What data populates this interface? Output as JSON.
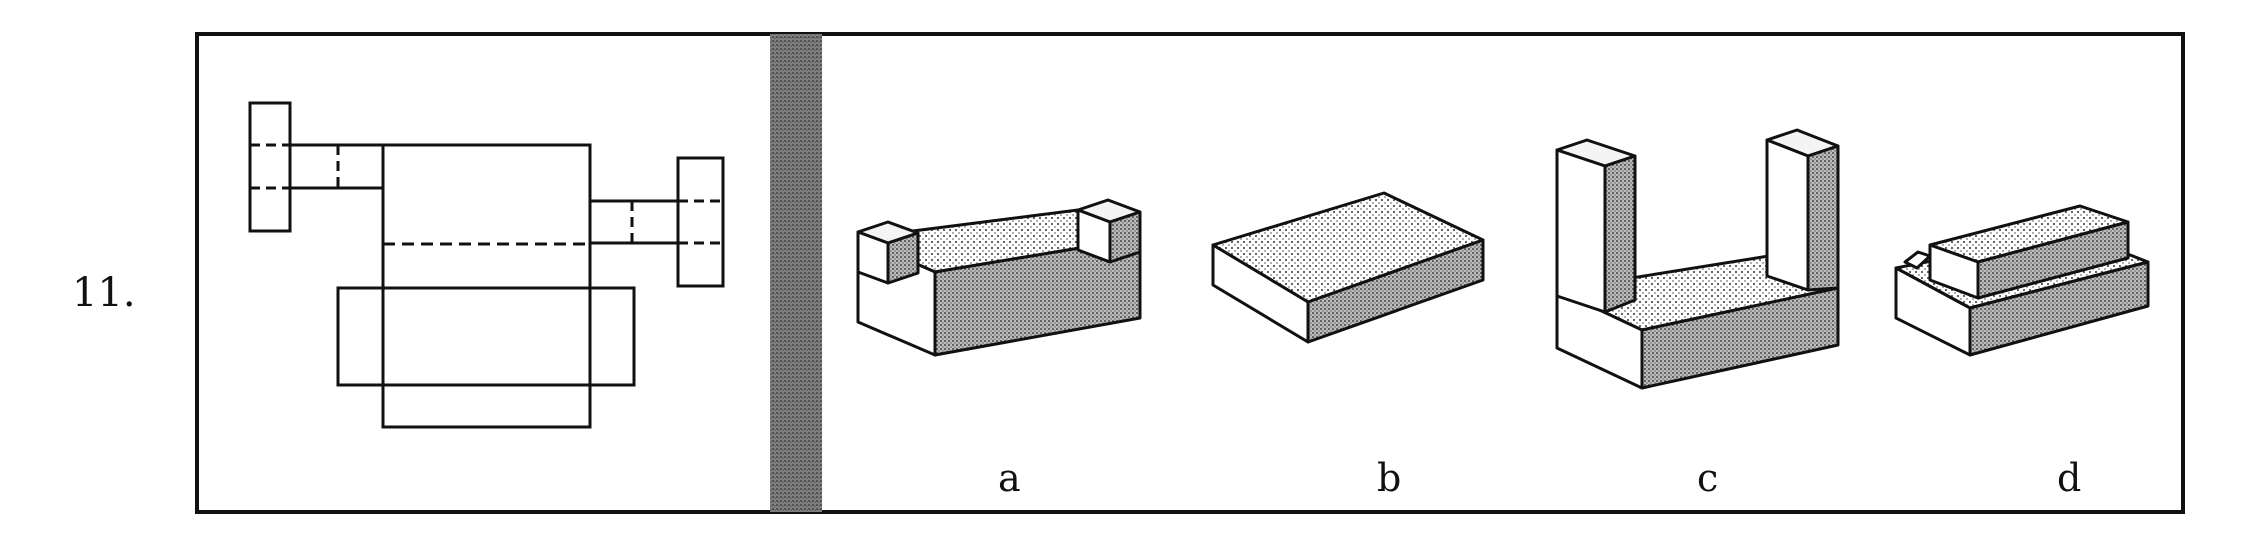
{
  "question": {
    "number": "11."
  },
  "options": [
    {
      "label": "a"
    },
    {
      "label": "b"
    },
    {
      "label": "c"
    },
    {
      "label": "d"
    }
  ],
  "colors": {
    "ink": "#111111",
    "divider": "#6f6f6f",
    "shade": "#9a9a9a"
  }
}
